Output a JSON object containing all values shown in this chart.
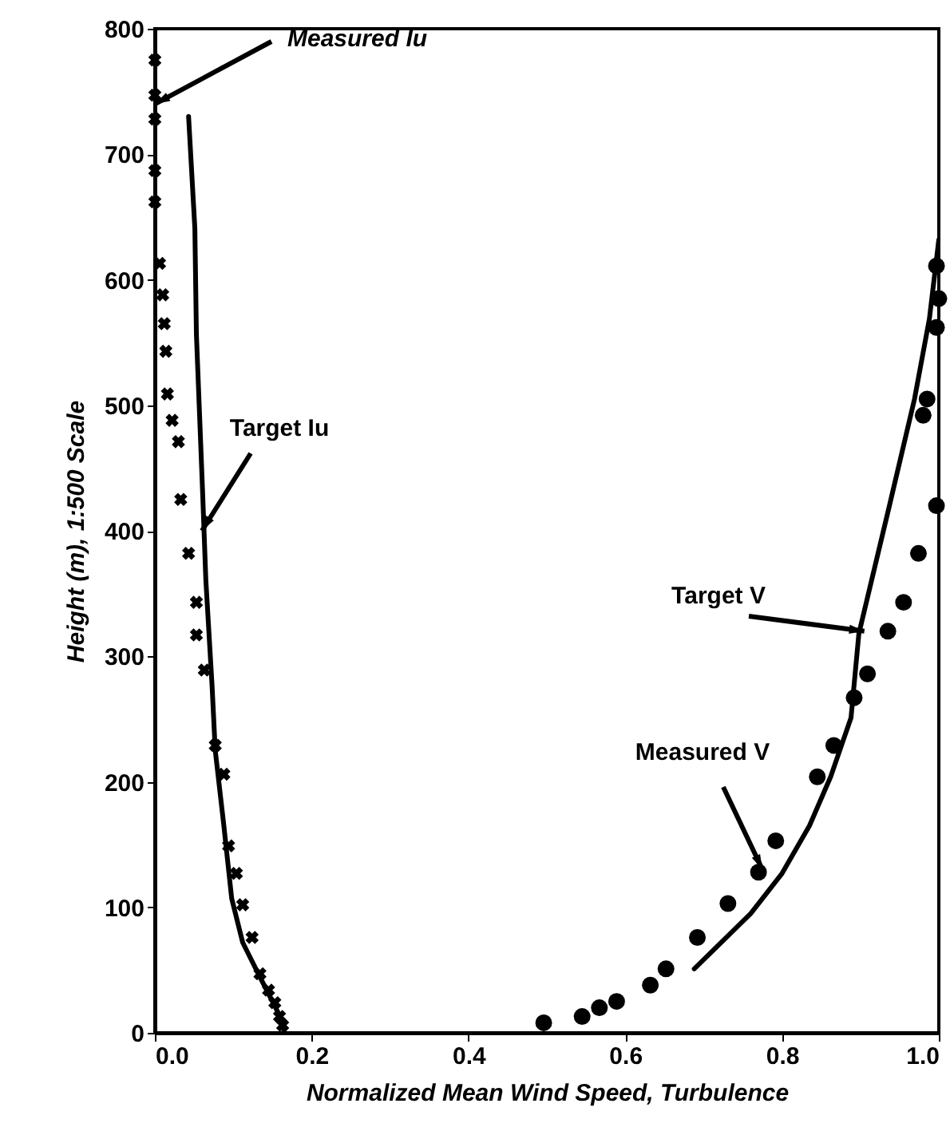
{
  "chart_data": {
    "type": "line",
    "xlabel": "Normalized Mean Wind Speed, Turbulence",
    "ylabel": "Height (m), 1:500 Scale",
    "xlim": [
      0,
      1
    ],
    "ylim": [
      0,
      800
    ],
    "xticks": [
      {
        "value": 0,
        "label": "0.0"
      },
      0.2,
      0.4,
      0.6,
      0.8,
      {
        "value": 1,
        "label": "1.0"
      }
    ],
    "yticks": [
      0,
      100,
      200,
      300,
      400,
      500,
      600,
      700,
      800
    ],
    "grid": false,
    "series": [
      {
        "type": "scatter",
        "marker": "cross",
        "color": "#000000",
        "x": [
          0,
          0,
          0,
          0,
          0,
          0.006,
          0.01,
          0.012,
          0.014,
          0.016,
          0.022,
          0.03,
          0.033,
          0.043,
          0.053,
          0.053,
          0.063,
          0.077,
          0.088,
          0.094,
          0.104,
          0.112,
          0.124,
          0.134,
          0.145,
          0.153,
          0.159,
          0.163
        ],
        "values": [
          775,
          747,
          728,
          687,
          662,
          613,
          588,
          565,
          543,
          509,
          488,
          471,
          425,
          382,
          343,
          317,
          289,
          229,
          206,
          149,
          127,
          102,
          76,
          47,
          34,
          24,
          13,
          6
        ]
      },
      {
        "type": "line",
        "line_style": "solid",
        "color": "#000000",
        "x": [
          0.043,
          0.051,
          0.053,
          0.061,
          0.065,
          0.073,
          0.077,
          0.088,
          0.098,
          0.112,
          0.132,
          0.163,
          0.165
        ],
        "values": [
          730,
          641,
          556,
          429,
          361,
          276,
          225,
          165,
          107,
          72,
          47,
          9,
          0
        ]
      },
      {
        "type": "scatter",
        "marker": "circle",
        "color": "#000000",
        "x": [
          0.496,
          0.545,
          0.567,
          0.589,
          0.632,
          0.652,
          0.692,
          0.731,
          0.77,
          0.792,
          0.845,
          0.866,
          0.892,
          0.909,
          0.935,
          0.955,
          0.974,
          0.997,
          0.98,
          0.985,
          0.997,
          1.0,
          0.997
        ],
        "values": [
          8,
          13,
          20,
          25,
          38,
          51,
          76,
          103,
          128,
          153,
          204,
          229,
          267,
          286,
          320,
          343,
          382,
          420,
          492,
          505,
          562,
          585,
          611
        ]
      },
      {
        "type": "line",
        "line_style": "solid",
        "color": "#000000",
        "x": [
          0.688,
          0.76,
          0.8,
          0.835,
          0.862,
          0.888,
          0.898,
          0.937,
          0.969,
          0.988,
          1.0
        ],
        "values": [
          51,
          95,
          127,
          165,
          204,
          251,
          318,
          420,
          505,
          569,
          632
        ]
      }
    ],
    "annotations": [
      {
        "text": "Measured Iu",
        "x": 0,
        "y": 740
      },
      {
        "text": "Target Iu",
        "x": 0.06,
        "y": 400
      },
      {
        "text": "Target V",
        "x": 0.905,
        "y": 320
      },
      {
        "text": "Measured V",
        "x": 0.775,
        "y": 130
      }
    ]
  }
}
